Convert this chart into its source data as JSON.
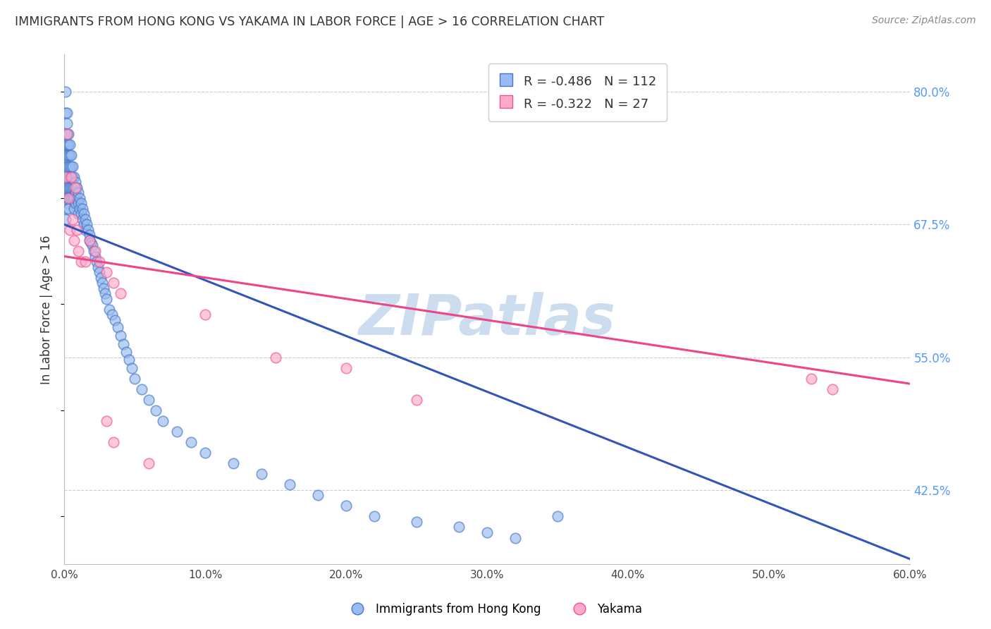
{
  "title": "IMMIGRANTS FROM HONG KONG VS YAKAMA IN LABOR FORCE | AGE > 16 CORRELATION CHART",
  "source": "Source: ZipAtlas.com",
  "ylabel": "In Labor Force | Age > 16",
  "blue_label": "Immigrants from Hong Kong",
  "pink_label": "Yakama",
  "blue_R": -0.486,
  "blue_N": 112,
  "pink_R": -0.322,
  "pink_N": 27,
  "xlim": [
    0.0,
    0.6
  ],
  "ylim": [
    0.355,
    0.835
  ],
  "xticklabels": [
    "0.0%",
    "10.0%",
    "20.0%",
    "30.0%",
    "40.0%",
    "50.0%",
    "60.0%"
  ],
  "xticks": [
    0.0,
    0.1,
    0.2,
    0.3,
    0.4,
    0.5,
    0.6
  ],
  "right_yticks": [
    0.425,
    0.55,
    0.675,
    0.8
  ],
  "right_yticklabels": [
    "42.5%",
    "55.0%",
    "67.5%",
    "80.0%"
  ],
  "blue_color": "#99BBEE",
  "pink_color": "#FFAACC",
  "blue_edge_color": "#4477CC",
  "pink_edge_color": "#EE5588",
  "blue_line_color": "#3355BB",
  "pink_line_color": "#EE4488",
  "watermark": "ZIPatlas",
  "watermark_color": "#CCDDF0",
  "background_color": "#FFFFFF",
  "grid_color": "#CCCCCC",
  "title_color": "#333333",
  "source_color": "#888888",
  "right_tick_color": "#5599FF",
  "blue_x": [
    0.001,
    0.001,
    0.001,
    0.001,
    0.001,
    0.001,
    0.001,
    0.001,
    0.001,
    0.001,
    0.001,
    0.001,
    0.002,
    0.002,
    0.002,
    0.002,
    0.002,
    0.002,
    0.002,
    0.002,
    0.002,
    0.002,
    0.003,
    0.003,
    0.003,
    0.003,
    0.003,
    0.003,
    0.003,
    0.003,
    0.004,
    0.004,
    0.004,
    0.004,
    0.004,
    0.004,
    0.005,
    0.005,
    0.005,
    0.005,
    0.005,
    0.006,
    0.006,
    0.006,
    0.006,
    0.007,
    0.007,
    0.007,
    0.007,
    0.008,
    0.008,
    0.008,
    0.009,
    0.009,
    0.01,
    0.01,
    0.01,
    0.011,
    0.011,
    0.012,
    0.012,
    0.013,
    0.013,
    0.014,
    0.014,
    0.015,
    0.015,
    0.016,
    0.017,
    0.018,
    0.018,
    0.019,
    0.02,
    0.021,
    0.022,
    0.023,
    0.024,
    0.025,
    0.026,
    0.027,
    0.028,
    0.029,
    0.03,
    0.032,
    0.034,
    0.036,
    0.038,
    0.04,
    0.042,
    0.044,
    0.046,
    0.048,
    0.05,
    0.055,
    0.06,
    0.065,
    0.07,
    0.08,
    0.09,
    0.1,
    0.12,
    0.14,
    0.16,
    0.18,
    0.2,
    0.22,
    0.25,
    0.28,
    0.3,
    0.32,
    0.35,
    0.001
  ],
  "blue_y": [
    0.8,
    0.78,
    0.76,
    0.75,
    0.74,
    0.73,
    0.72,
    0.715,
    0.71,
    0.705,
    0.7,
    0.695,
    0.78,
    0.77,
    0.76,
    0.75,
    0.74,
    0.73,
    0.72,
    0.71,
    0.7,
    0.69,
    0.76,
    0.75,
    0.74,
    0.73,
    0.72,
    0.71,
    0.7,
    0.69,
    0.75,
    0.74,
    0.73,
    0.72,
    0.71,
    0.7,
    0.74,
    0.73,
    0.72,
    0.71,
    0.7,
    0.73,
    0.72,
    0.71,
    0.7,
    0.72,
    0.71,
    0.7,
    0.69,
    0.715,
    0.705,
    0.695,
    0.71,
    0.7,
    0.705,
    0.695,
    0.685,
    0.7,
    0.69,
    0.695,
    0.685,
    0.69,
    0.68,
    0.685,
    0.675,
    0.68,
    0.67,
    0.675,
    0.67,
    0.665,
    0.66,
    0.658,
    0.655,
    0.65,
    0.645,
    0.64,
    0.635,
    0.63,
    0.625,
    0.62,
    0.615,
    0.61,
    0.605,
    0.595,
    0.59,
    0.585,
    0.578,
    0.57,
    0.562,
    0.555,
    0.548,
    0.54,
    0.53,
    0.52,
    0.51,
    0.5,
    0.49,
    0.48,
    0.47,
    0.46,
    0.45,
    0.44,
    0.43,
    0.42,
    0.41,
    0.4,
    0.395,
    0.39,
    0.385,
    0.38,
    0.4,
    0.68
  ],
  "pink_x": [
    0.001,
    0.002,
    0.003,
    0.004,
    0.005,
    0.006,
    0.007,
    0.008,
    0.009,
    0.01,
    0.012,
    0.015,
    0.018,
    0.022,
    0.025,
    0.03,
    0.035,
    0.04,
    0.1,
    0.15,
    0.2,
    0.25,
    0.53,
    0.545,
    0.03,
    0.035,
    0.06
  ],
  "pink_y": [
    0.72,
    0.76,
    0.7,
    0.67,
    0.72,
    0.68,
    0.66,
    0.71,
    0.67,
    0.65,
    0.64,
    0.64,
    0.66,
    0.65,
    0.64,
    0.63,
    0.62,
    0.61,
    0.59,
    0.55,
    0.54,
    0.51,
    0.53,
    0.52,
    0.49,
    0.47,
    0.45
  ]
}
